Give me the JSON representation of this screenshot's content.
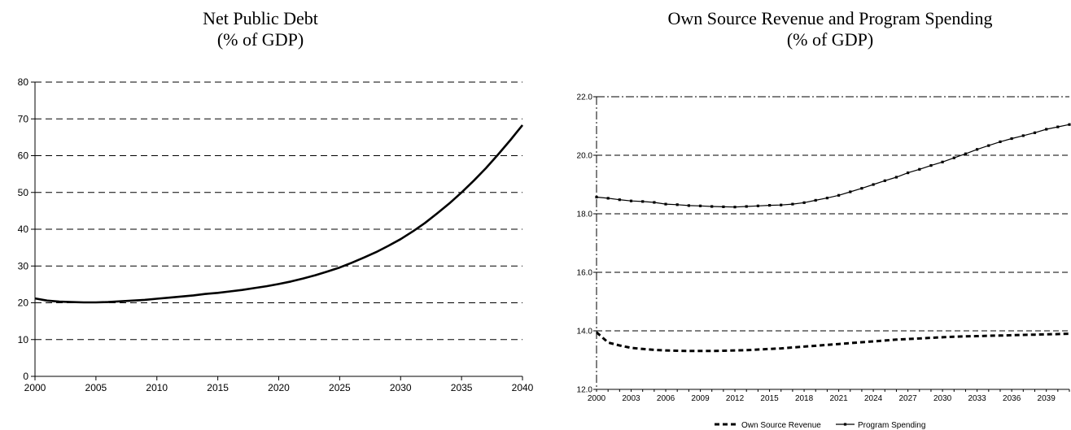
{
  "chart_data": [
    {
      "type": "line",
      "title": "Net Public Debt\n(% of GDP)",
      "x": [
        2000,
        2001,
        2002,
        2003,
        2004,
        2005,
        2006,
        2007,
        2008,
        2009,
        2010,
        2011,
        2012,
        2013,
        2014,
        2015,
        2016,
        2017,
        2018,
        2019,
        2020,
        2021,
        2022,
        2023,
        2024,
        2025,
        2026,
        2027,
        2028,
        2029,
        2030,
        2031,
        2032,
        2033,
        2034,
        2035,
        2036,
        2037,
        2038,
        2039,
        2040
      ],
      "series": [
        {
          "values": [
            21.2,
            20.6,
            20.3,
            20.2,
            20.1,
            20.1,
            20.2,
            20.4,
            20.6,
            20.8,
            21.1,
            21.4,
            21.7,
            22.0,
            22.4,
            22.7,
            23.1,
            23.5,
            24.0,
            24.5,
            25.1,
            25.8,
            26.6,
            27.5,
            28.5,
            29.6,
            30.9,
            32.3,
            33.8,
            35.5,
            37.3,
            39.4,
            41.7,
            44.3,
            47.0,
            50.0,
            53.2,
            56.6,
            60.3,
            64.2,
            68.3
          ]
        }
      ],
      "xticks": [
        "2000",
        "2005",
        "2010",
        "2015",
        "2020",
        "2025",
        "2030",
        "2035",
        "2040"
      ],
      "yticks": [
        "0",
        "10",
        "20",
        "30",
        "40",
        "50",
        "60",
        "70",
        "80"
      ],
      "ylim": [
        0,
        80
      ],
      "xlim": [
        2000,
        2040
      ],
      "grid": true,
      "legend": "none"
    },
    {
      "type": "line",
      "title": "Own Source Revenue and Program Spending\n(% of GDP)",
      "x": [
        2000,
        2001,
        2002,
        2003,
        2004,
        2005,
        2006,
        2007,
        2008,
        2009,
        2010,
        2011,
        2012,
        2013,
        2014,
        2015,
        2016,
        2017,
        2018,
        2019,
        2020,
        2021,
        2022,
        2023,
        2024,
        2025,
        2026,
        2027,
        2028,
        2029,
        2030,
        2031,
        2032,
        2033,
        2034,
        2035,
        2036,
        2037,
        2038,
        2039,
        2040,
        2041
      ],
      "series": [
        {
          "name": "Own Source Revenue",
          "style": "dashed",
          "values": [
            13.95,
            13.6,
            13.5,
            13.42,
            13.38,
            13.35,
            13.33,
            13.32,
            13.31,
            13.31,
            13.31,
            13.32,
            13.33,
            13.34,
            13.36,
            13.38,
            13.4,
            13.43,
            13.46,
            13.49,
            13.52,
            13.55,
            13.58,
            13.61,
            13.64,
            13.67,
            13.7,
            13.72,
            13.74,
            13.76,
            13.78,
            13.8,
            13.81,
            13.82,
            13.83,
            13.84,
            13.85,
            13.86,
            13.87,
            13.88,
            13.89,
            13.9
          ]
        },
        {
          "name": "Program Spending",
          "style": "solid-marker",
          "values": [
            18.57,
            18.53,
            18.48,
            18.44,
            18.42,
            18.39,
            18.33,
            18.31,
            18.28,
            18.27,
            18.25,
            18.24,
            18.23,
            18.25,
            18.27,
            18.29,
            18.3,
            18.33,
            18.38,
            18.46,
            18.54,
            18.63,
            18.75,
            18.87,
            19.0,
            19.13,
            19.25,
            19.4,
            19.52,
            19.65,
            19.77,
            19.91,
            20.05,
            20.2,
            20.33,
            20.46,
            20.57,
            20.67,
            20.77,
            20.89,
            20.97,
            21.05
          ]
        }
      ],
      "xticks": [
        "2000",
        "2003",
        "2006",
        "2009",
        "2012",
        "2015",
        "2018",
        "2021",
        "2024",
        "2027",
        "2030",
        "2033",
        "2036",
        "2039"
      ],
      "yticks": [
        "12.0",
        "14.0",
        "16.0",
        "18.0",
        "20.0",
        "22.0"
      ],
      "ylim": [
        12,
        22
      ],
      "xlim": [
        2000,
        2041
      ],
      "grid": true,
      "legend": "bottom"
    }
  ]
}
